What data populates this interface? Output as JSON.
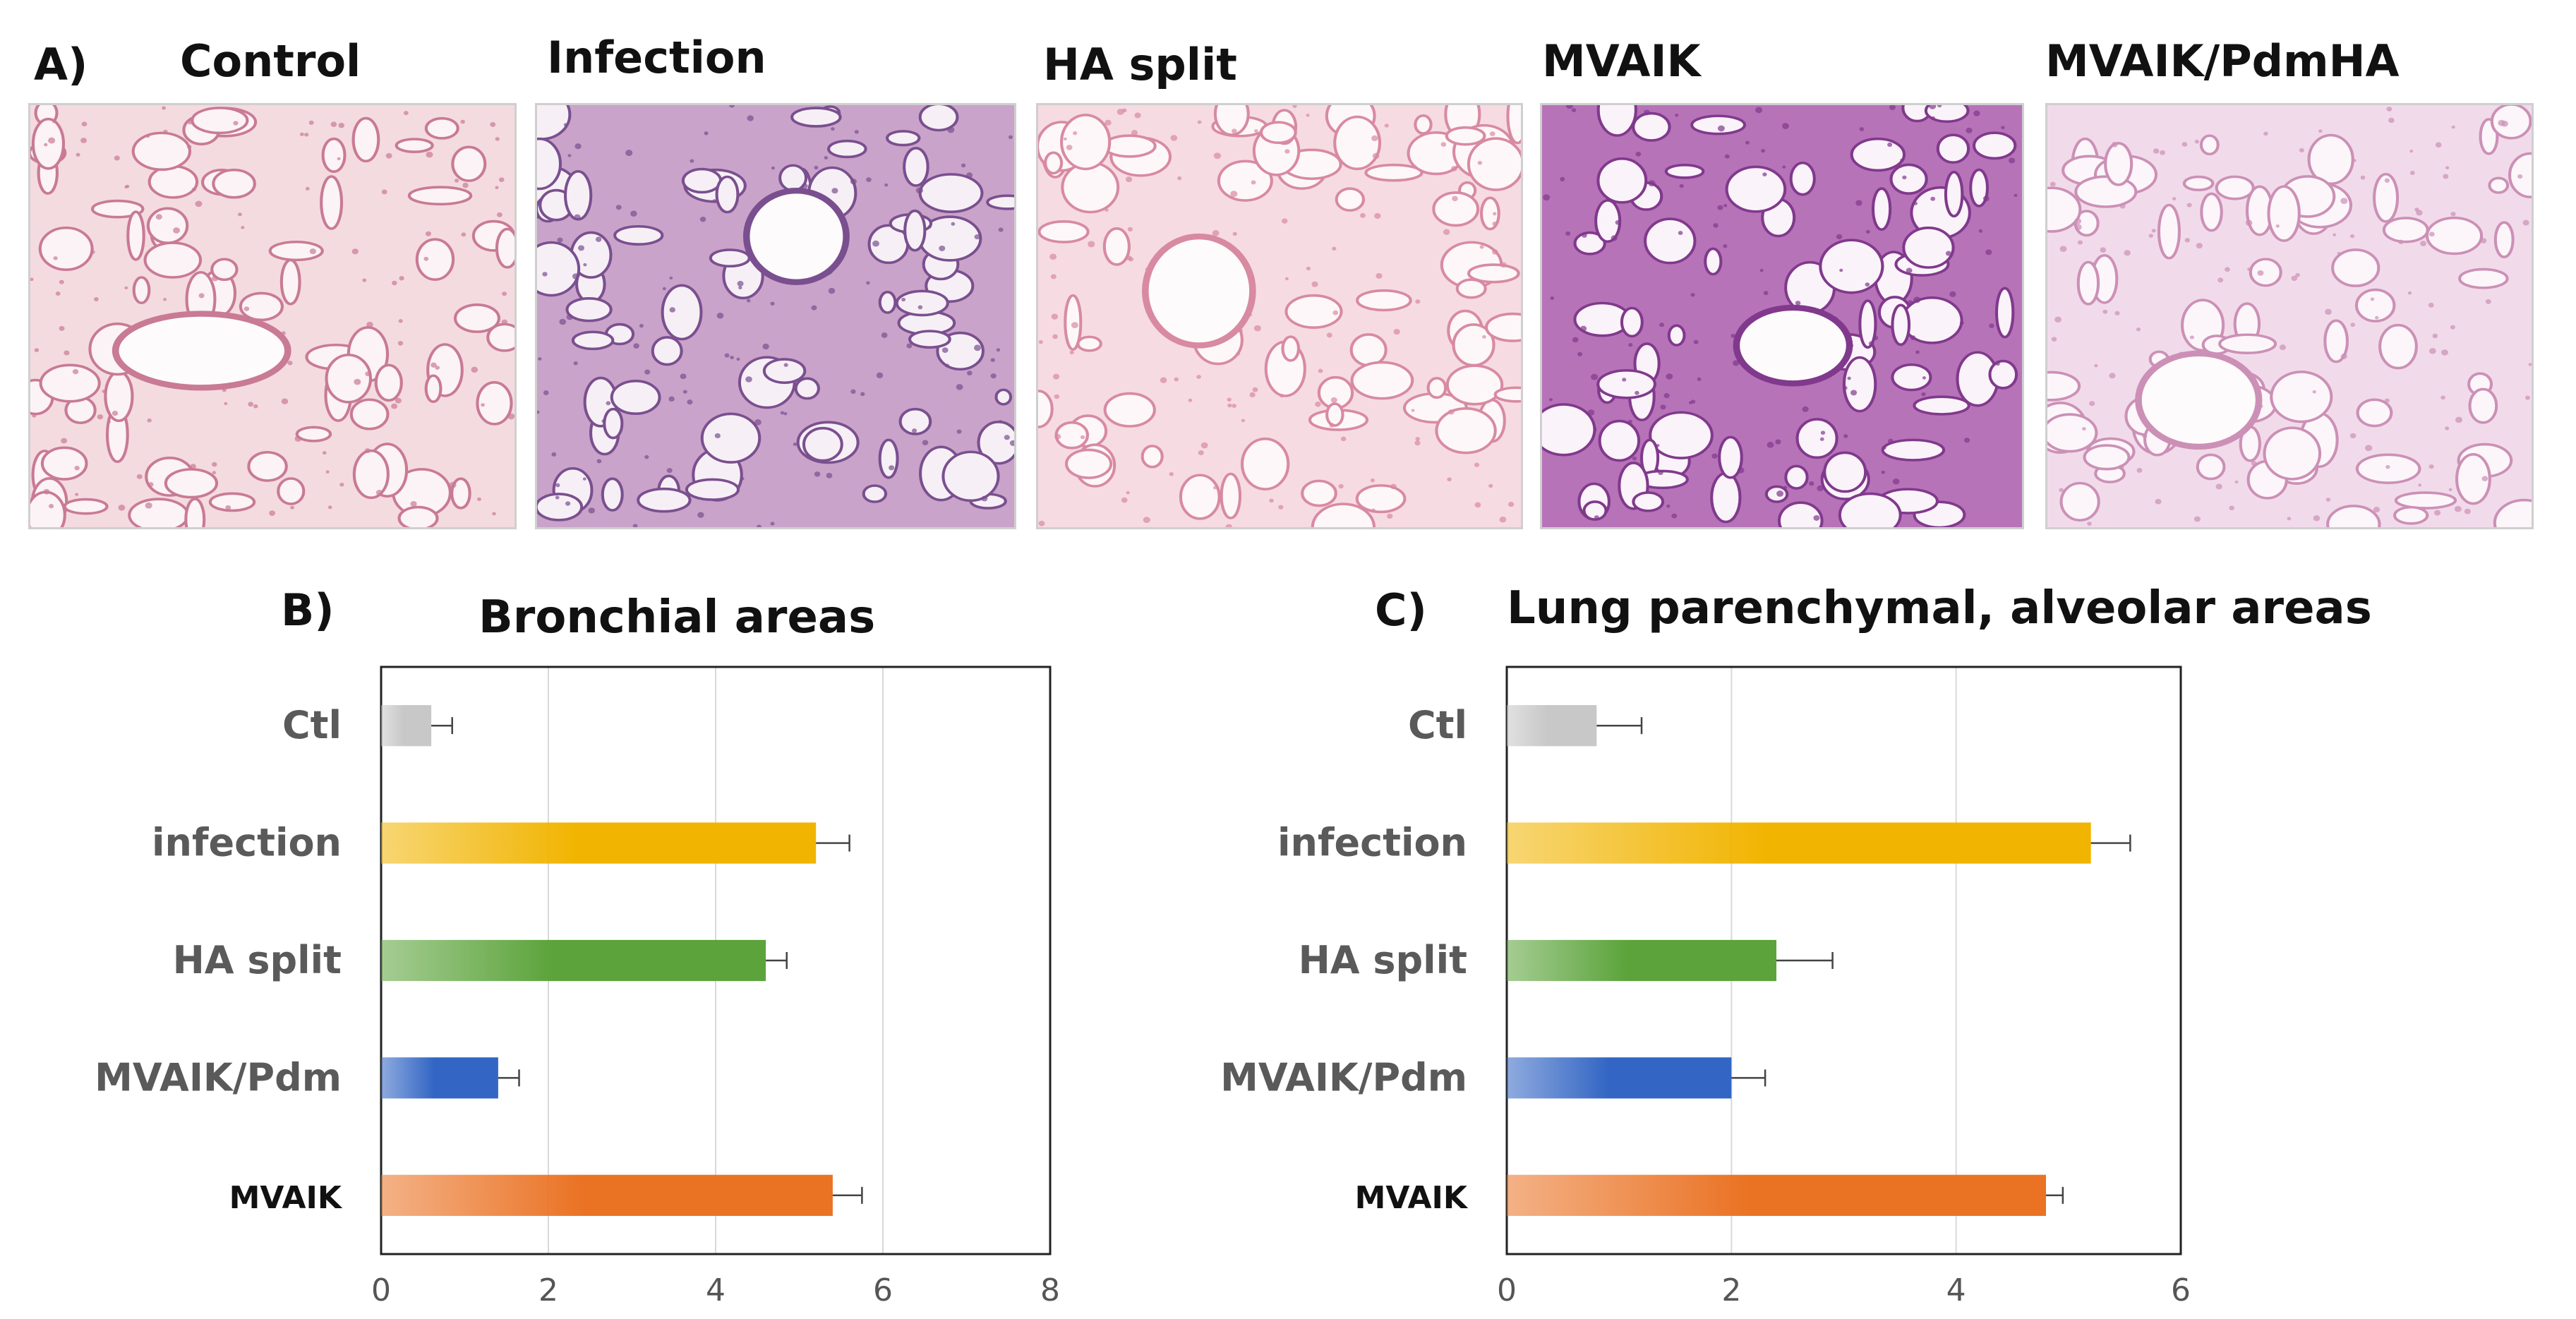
{
  "panel_a": {
    "letter": "A)",
    "images": [
      {
        "title": "Control",
        "tissue": "#f4dbe0",
        "stain": "#c97a95",
        "alveoli": "#fbf3f5"
      },
      {
        "title": "Infection",
        "tissue": "#c9a3c9",
        "stain": "#7a4f8f",
        "alveoli": "#f6f0f6"
      },
      {
        "title": "HA split",
        "tissue": "#f6dbe3",
        "stain": "#d88aa2",
        "alveoli": "#fdf7f9"
      },
      {
        "title": "MVAIK",
        "tissue": "#b773b8",
        "stain": "#80398c",
        "alveoli": "#fbf3fa"
      },
      {
        "title": "MVAIK/PdmHA",
        "tissue": "#f1dbea",
        "stain": "#cc90b6",
        "alveoli": "#fcf6fa"
      }
    ]
  },
  "chart_data": [
    {
      "letter": "B)",
      "type": "bar",
      "orientation": "horizontal",
      "title": "Bronchial areas",
      "categories": [
        "Ctl",
        "infection",
        "HA split",
        "MVAIK/Pdm",
        "MVAIK"
      ],
      "values": [
        0.6,
        5.2,
        4.6,
        1.4,
        5.4
      ],
      "errors": [
        0.25,
        0.4,
        0.25,
        0.25,
        0.35
      ],
      "xlim": [
        0,
        8
      ],
      "xticks": [
        "0",
        "2",
        "4",
        "6",
        "8"
      ],
      "grid": true,
      "colors": [
        "#c8c8c8",
        "#f1b400",
        "#5ba33a",
        "#3366c4",
        "#ea7223"
      ]
    },
    {
      "letter": "C)",
      "type": "bar",
      "orientation": "horizontal",
      "title": "Lung parenchymal, alveolar areas",
      "categories": [
        "Ctl",
        "infection",
        "HA split",
        "MVAIK/Pdm",
        "MVAIK"
      ],
      "values": [
        0.8,
        5.2,
        2.4,
        2.0,
        4.8
      ],
      "errors": [
        0.4,
        0.35,
        0.5,
        0.3,
        0.15
      ],
      "xlim": [
        0,
        6
      ],
      "xticks": [
        "0",
        "2",
        "4",
        "6"
      ],
      "grid": true,
      "colors": [
        "#c8c8c8",
        "#f1b400",
        "#5ba33a",
        "#3366c4",
        "#ea7223"
      ]
    }
  ]
}
